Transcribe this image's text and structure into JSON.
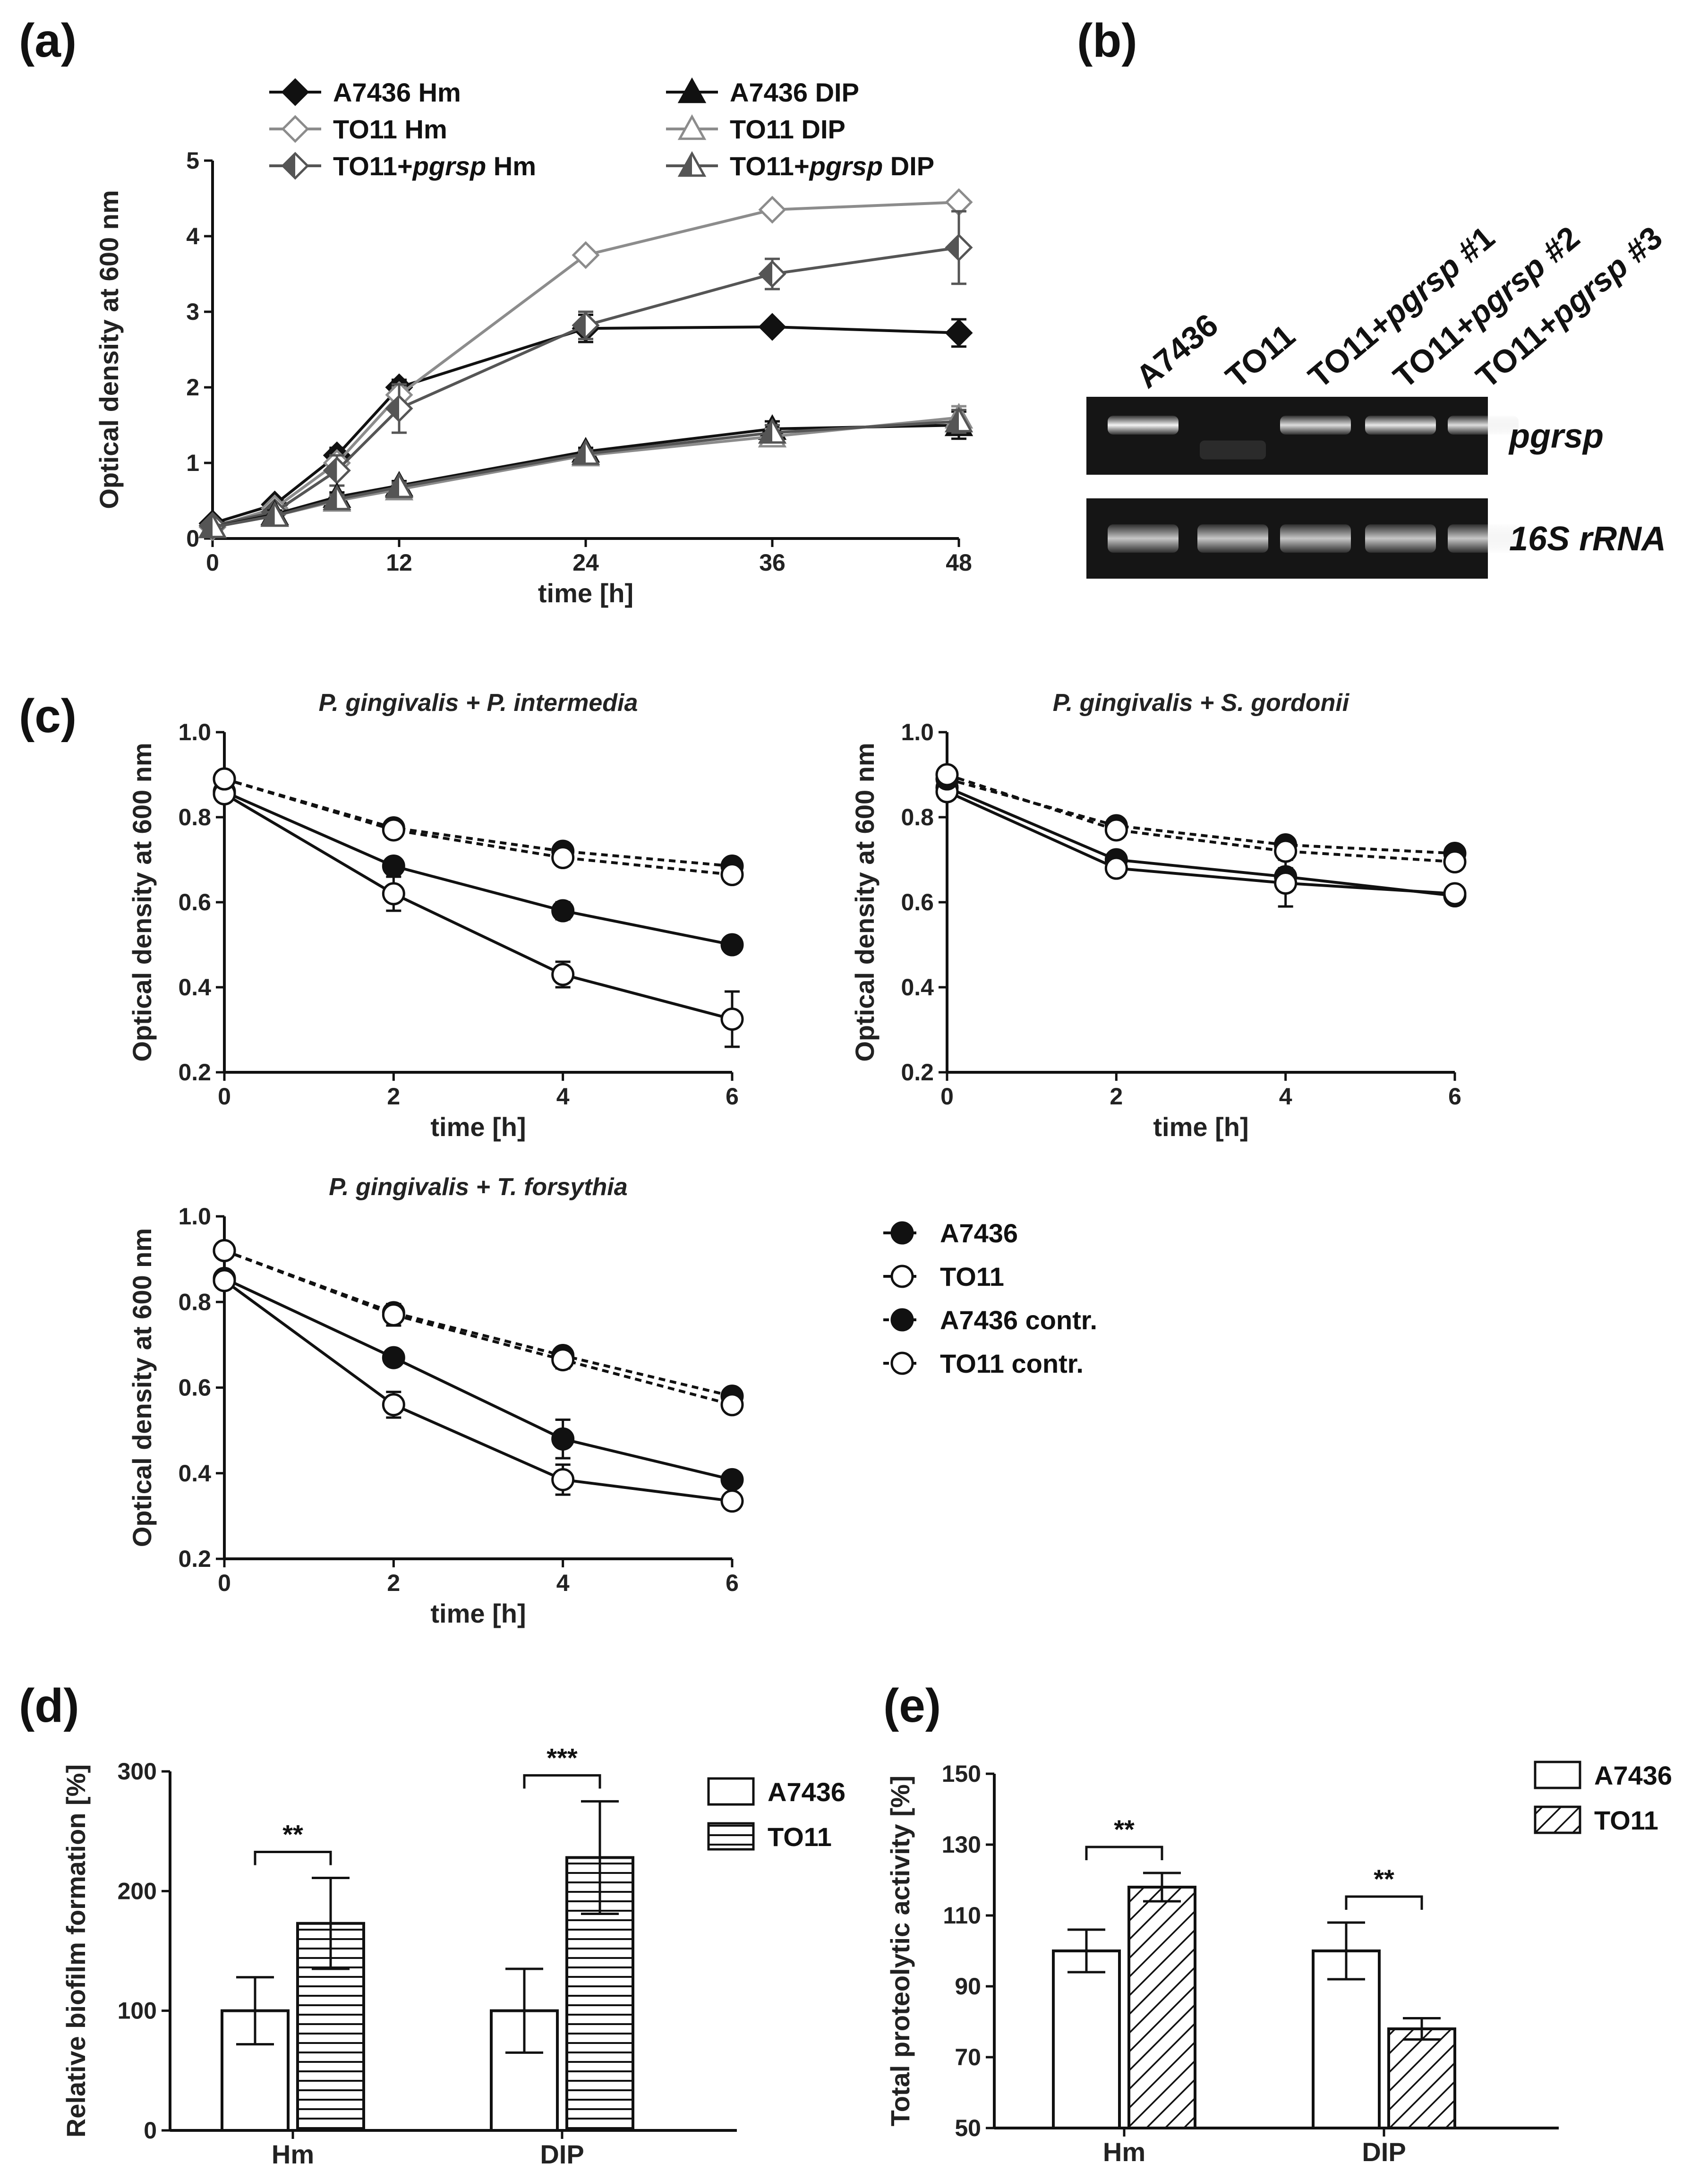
{
  "panel_labels": {
    "a": "(a)",
    "b": "(b)",
    "c": "(c)",
    "d": "(d)",
    "e": "(e)"
  },
  "chart_data": [
    {
      "id": "a",
      "type": "line",
      "xlabel": "time [h]",
      "ylabel": "Optical density at  600 nm",
      "x": [
        0,
        4,
        8,
        12,
        24,
        36,
        48
      ],
      "xlim": [
        0,
        48
      ],
      "ylim": [
        0,
        5
      ],
      "xticks": [
        "0",
        "12",
        "24",
        "36",
        "48"
      ],
      "yticks": [
        "0",
        "1",
        "2",
        "3",
        "4",
        "5"
      ],
      "series": [
        {
          "name": "A7436 Hm",
          "name_main": "A7436 Hm",
          "values": [
            0.2,
            0.45,
            1.1,
            2.0,
            2.78,
            2.8,
            2.72
          ],
          "err": [
            0.03,
            0.05,
            0.1,
            0.1,
            0.18,
            0.06,
            0.18
          ],
          "color": "#111111",
          "marker": "diamond-filled"
        },
        {
          "name": "TO11 Hm",
          "name_main": "TO11 Hm",
          "values": [
            0.15,
            0.4,
            1.0,
            1.9,
            3.75,
            4.35,
            4.45
          ],
          "err": [
            0.03,
            0.05,
            0.1,
            0.1,
            0.07,
            0.07,
            0.05
          ],
          "color": "#8c8c8c",
          "marker": "diamond-open"
        },
        {
          "name": "TO11+pgrsp Hm",
          "name_main": "TO11+",
          "name_ital": "pgrsp",
          "name_rest": " Hm",
          "values": [
            0.17,
            0.35,
            0.9,
            1.72,
            2.82,
            3.5,
            3.85
          ],
          "err": [
            0.03,
            0.05,
            0.2,
            0.32,
            0.18,
            0.2,
            0.48
          ],
          "color": "#555555",
          "marker": "diamond-half"
        },
        {
          "name": "A7436 DIP",
          "name_main": "A7436 DIP",
          "values": [
            0.15,
            0.32,
            0.55,
            0.7,
            1.15,
            1.45,
            1.5
          ],
          "err": [
            0.03,
            0.05,
            0.06,
            0.06,
            0.05,
            0.1,
            0.18
          ],
          "color": "#111111",
          "marker": "triangle-filled"
        },
        {
          "name": "TO11 DIP",
          "name_main": "TO11 DIP",
          "values": [
            0.15,
            0.3,
            0.5,
            0.65,
            1.1,
            1.35,
            1.6
          ],
          "err": [
            0.03,
            0.05,
            0.06,
            0.06,
            0.05,
            0.1,
            0.15
          ],
          "color": "#8c8c8c",
          "marker": "triangle-open"
        },
        {
          "name": "TO11+pgrsp DIP",
          "name_main": "TO11+",
          "name_ital": "pgrsp",
          "name_rest": " DIP",
          "values": [
            0.15,
            0.3,
            0.52,
            0.68,
            1.12,
            1.4,
            1.55
          ],
          "err": [
            0.03,
            0.05,
            0.06,
            0.06,
            0.05,
            0.1,
            0.15
          ],
          "color": "#555555",
          "marker": "triangle-half"
        }
      ]
    },
    {
      "id": "c1",
      "type": "line",
      "title": "P. gingivalis + P. intermedia",
      "xlabel": "time [h]",
      "ylabel": "Optical density at  600 nm",
      "x": [
        0,
        2,
        4,
        6
      ],
      "xlim": [
        0,
        6
      ],
      "ylim": [
        0.2,
        1.0
      ],
      "xticks": [
        "0",
        "2",
        "4",
        "6"
      ],
      "yticks": [
        "0.2",
        "0.4",
        "0.6",
        "0.8",
        "1.0"
      ],
      "series": [
        {
          "name": "A7436",
          "values": [
            0.86,
            0.685,
            0.58,
            0.5
          ],
          "err": [
            0.01,
            0.015,
            0.02,
            0.01
          ],
          "style": "solid",
          "filled": true
        },
        {
          "name": "TO11",
          "values": [
            0.855,
            0.62,
            0.43,
            0.325
          ],
          "err": [
            0.01,
            0.04,
            0.03,
            0.065
          ],
          "style": "solid",
          "filled": false
        },
        {
          "name": "A7436 contr.",
          "values": [
            0.89,
            0.775,
            0.72,
            0.685
          ],
          "err": [
            0.01,
            0.01,
            0.01,
            0.01
          ],
          "style": "dashed",
          "filled": true
        },
        {
          "name": "TO11 contr.",
          "values": [
            0.89,
            0.77,
            0.705,
            0.665
          ],
          "err": [
            0.01,
            0.01,
            0.01,
            0.01
          ],
          "style": "dashed",
          "filled": false
        }
      ]
    },
    {
      "id": "c2",
      "type": "line",
      "title": "P. gingivalis + S. gordonii",
      "xlabel": "time [h]",
      "ylabel": "Optical density at  600 nm",
      "x": [
        0,
        2,
        4,
        6
      ],
      "xlim": [
        0,
        6
      ],
      "ylim": [
        0.2,
        1.0
      ],
      "xticks": [
        "0",
        "2",
        "4",
        "6"
      ],
      "yticks": [
        "0.2",
        "0.4",
        "0.6",
        "0.8",
        "1.0"
      ],
      "series": [
        {
          "name": "A7436",
          "values": [
            0.87,
            0.7,
            0.66,
            0.615
          ],
          "err": [
            0.01,
            0.015,
            0.02,
            0.01
          ],
          "style": "solid",
          "filled": true
        },
        {
          "name": "TO11",
          "values": [
            0.86,
            0.68,
            0.645,
            0.62
          ],
          "err": [
            0.01,
            0.015,
            0.055,
            0.01
          ],
          "style": "solid",
          "filled": false
        },
        {
          "name": "A7436 contr.",
          "values": [
            0.89,
            0.78,
            0.735,
            0.715
          ],
          "err": [
            0.01,
            0.01,
            0.01,
            0.01
          ],
          "style": "dashed",
          "filled": true
        },
        {
          "name": "TO11 contr.",
          "values": [
            0.9,
            0.77,
            0.72,
            0.695
          ],
          "err": [
            0.01,
            0.01,
            0.01,
            0.01
          ],
          "style": "dashed",
          "filled": false
        }
      ]
    },
    {
      "id": "c3",
      "type": "line",
      "title": "P. gingivalis + T. forsythia",
      "xlabel": "time [h]",
      "ylabel": "Optical density at  600 nm",
      "x": [
        0,
        2,
        4,
        6
      ],
      "xlim": [
        0,
        6
      ],
      "ylim": [
        0.2,
        1.0
      ],
      "xticks": [
        "0",
        "2",
        "4",
        "6"
      ],
      "yticks": [
        "0.2",
        "0.4",
        "0.6",
        "0.8",
        "1.0"
      ],
      "series": [
        {
          "name": "A7436",
          "values": [
            0.855,
            0.67,
            0.48,
            0.385
          ],
          "err": [
            0.01,
            0.015,
            0.045,
            0.01
          ],
          "style": "solid",
          "filled": true
        },
        {
          "name": "TO11",
          "values": [
            0.85,
            0.56,
            0.385,
            0.335
          ],
          "err": [
            0.01,
            0.03,
            0.035,
            0.01
          ],
          "style": "solid",
          "filled": false
        },
        {
          "name": "A7436 contr.",
          "values": [
            0.92,
            0.775,
            0.675,
            0.58
          ],
          "err": [
            0.01,
            0.02,
            0.015,
            0.01
          ],
          "style": "dashed",
          "filled": true
        },
        {
          "name": "TO11 contr.",
          "values": [
            0.92,
            0.77,
            0.665,
            0.56
          ],
          "err": [
            0.01,
            0.025,
            0.02,
            0.01
          ],
          "style": "dashed",
          "filled": false
        }
      ]
    },
    {
      "id": "d",
      "type": "bar",
      "ylabel": "Relative biofilm formation  [%]",
      "categories": [
        "Hm",
        "DIP"
      ],
      "ylim": [
        0,
        300
      ],
      "yticks": [
        "0",
        "100",
        "200",
        "300"
      ],
      "series": [
        {
          "name": "A7436",
          "values": [
            100,
            100
          ],
          "err": [
            28,
            35
          ],
          "pattern": "none"
        },
        {
          "name": "TO11",
          "values": [
            173,
            228
          ],
          "err": [
            38,
            47
          ],
          "pattern": "horizontal"
        }
      ],
      "significance": [
        "**",
        "***"
      ]
    },
    {
      "id": "e",
      "type": "bar",
      "ylabel": "Total proteolytic activity [%]",
      "categories": [
        "Hm",
        "DIP"
      ],
      "ylim": [
        50,
        150
      ],
      "yticks": [
        "50",
        "70",
        "90",
        "110",
        "130",
        "150"
      ],
      "series": [
        {
          "name": "A7436",
          "values": [
            100,
            100
          ],
          "err": [
            6,
            8
          ],
          "pattern": "none"
        },
        {
          "name": "TO11",
          "values": [
            118,
            78
          ],
          "err": [
            4,
            3
          ],
          "pattern": "diagonal"
        }
      ],
      "significance": [
        "**",
        "**"
      ]
    }
  ],
  "gel": {
    "lanes": [
      {
        "main": "A7436",
        "ital": "",
        "rest": ""
      },
      {
        "main": "TO11",
        "ital": "",
        "rest": ""
      },
      {
        "main": "TO11+",
        "ital": "pgrsp",
        "rest": "  #1"
      },
      {
        "main": "TO11+",
        "ital": "pgrsp",
        "rest": "  #2"
      },
      {
        "main": "TO11+",
        "ital": "pgrsp",
        "rest": "  #3"
      }
    ],
    "rows": [
      {
        "gene": "pgrsp",
        "band_intensity": [
          1.0,
          0.0,
          0.9,
          0.95,
          0.9
        ]
      },
      {
        "gene": "16S rRNA",
        "band_intensity": [
          0.8,
          0.8,
          0.8,
          0.8,
          0.8
        ]
      }
    ]
  },
  "legend_c": [
    "A7436",
    "TO11",
    "A7436 contr.",
    "TO11 contr."
  ]
}
